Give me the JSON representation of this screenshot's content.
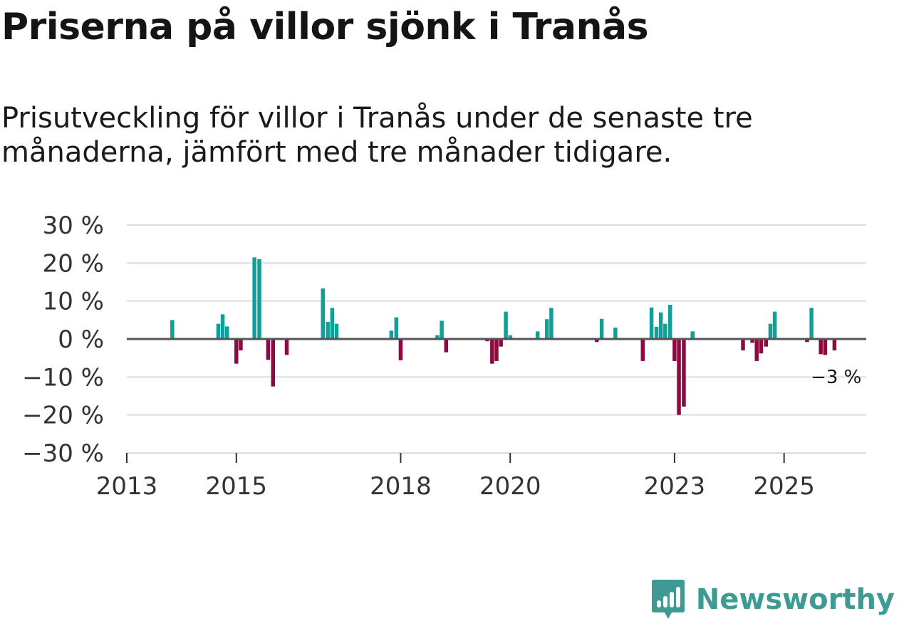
{
  "title": "Priserna på villor sjönk i Tranås",
  "subtitle": "Prisutveckling för villor i Tranås under de senaste tre månaderna, jämfört med tre månader tidigare.",
  "brand": {
    "name": "Newsworthy",
    "icon": "newsworthy-logo-icon"
  },
  "colors": {
    "positive": "#119f97",
    "negative": "#8c0a3f",
    "grid": "#dddddd",
    "zero": "#555555"
  },
  "chart_data": {
    "type": "bar",
    "title": "Priserna på villor sjönk i Tranås",
    "xlabel": "",
    "ylabel": "",
    "ylim": [
      -30,
      30
    ],
    "y_ticks": [
      30,
      20,
      10,
      0,
      -10,
      -20,
      -30
    ],
    "y_tick_labels": [
      "30 %",
      "20 %",
      "10 %",
      "0 %",
      "−10 %",
      "−20 %",
      "−30 %"
    ],
    "x_range": [
      2013.0,
      2026.5
    ],
    "x_ticks": [
      2013,
      2015,
      2018,
      2020,
      2023,
      2025
    ],
    "x_tick_labels": [
      "2013",
      "2015",
      "2018",
      "2020",
      "2023",
      "2025"
    ],
    "end_label": "−3 %",
    "series": [
      {
        "name": "Prisutveckling",
        "points": [
          {
            "x": 2013.83,
            "y": 5
          },
          {
            "x": 2014.67,
            "y": 4
          },
          {
            "x": 2014.75,
            "y": 6.5
          },
          {
            "x": 2014.83,
            "y": 3.3
          },
          {
            "x": 2015.0,
            "y": -6.5
          },
          {
            "x": 2015.08,
            "y": -3
          },
          {
            "x": 2015.33,
            "y": 21.5
          },
          {
            "x": 2015.42,
            "y": 21
          },
          {
            "x": 2015.58,
            "y": -5.5
          },
          {
            "x": 2015.67,
            "y": -12.5
          },
          {
            "x": 2015.92,
            "y": -4.2
          },
          {
            "x": 2016.58,
            "y": 13.3
          },
          {
            "x": 2016.67,
            "y": 4.5
          },
          {
            "x": 2016.75,
            "y": 8.2
          },
          {
            "x": 2016.83,
            "y": 4
          },
          {
            "x": 2017.83,
            "y": 2.2
          },
          {
            "x": 2017.92,
            "y": 5.7
          },
          {
            "x": 2018.0,
            "y": -5.6
          },
          {
            "x": 2018.67,
            "y": 1
          },
          {
            "x": 2018.75,
            "y": 4.8
          },
          {
            "x": 2018.83,
            "y": -3.5
          },
          {
            "x": 2019.58,
            "y": -0.6
          },
          {
            "x": 2019.67,
            "y": -6.5
          },
          {
            "x": 2019.75,
            "y": -5.8
          },
          {
            "x": 2019.83,
            "y": -2
          },
          {
            "x": 2019.92,
            "y": 7.2
          },
          {
            "x": 2020.0,
            "y": 1
          },
          {
            "x": 2020.5,
            "y": 2
          },
          {
            "x": 2020.67,
            "y": 5.2
          },
          {
            "x": 2020.75,
            "y": 8.2
          },
          {
            "x": 2021.58,
            "y": -0.8
          },
          {
            "x": 2021.67,
            "y": 5.3
          },
          {
            "x": 2021.92,
            "y": 3
          },
          {
            "x": 2022.42,
            "y": -5.8
          },
          {
            "x": 2022.58,
            "y": 8.3
          },
          {
            "x": 2022.67,
            "y": 3.2
          },
          {
            "x": 2022.75,
            "y": 7
          },
          {
            "x": 2022.83,
            "y": 4
          },
          {
            "x": 2022.92,
            "y": 9
          },
          {
            "x": 2023.0,
            "y": -5.8
          },
          {
            "x": 2023.08,
            "y": -20
          },
          {
            "x": 2023.17,
            "y": -17.8
          },
          {
            "x": 2023.33,
            "y": 2
          },
          {
            "x": 2024.25,
            "y": -3
          },
          {
            "x": 2024.42,
            "y": -1
          },
          {
            "x": 2024.5,
            "y": -5.8
          },
          {
            "x": 2024.58,
            "y": -3.8
          },
          {
            "x": 2024.67,
            "y": -2
          },
          {
            "x": 2024.75,
            "y": 4
          },
          {
            "x": 2024.83,
            "y": 7.2
          },
          {
            "x": 2025.42,
            "y": -0.8
          },
          {
            "x": 2025.5,
            "y": 8.2
          },
          {
            "x": 2025.67,
            "y": -4
          },
          {
            "x": 2025.75,
            "y": -4.2
          },
          {
            "x": 2025.92,
            "y": -3
          }
        ]
      }
    ]
  }
}
